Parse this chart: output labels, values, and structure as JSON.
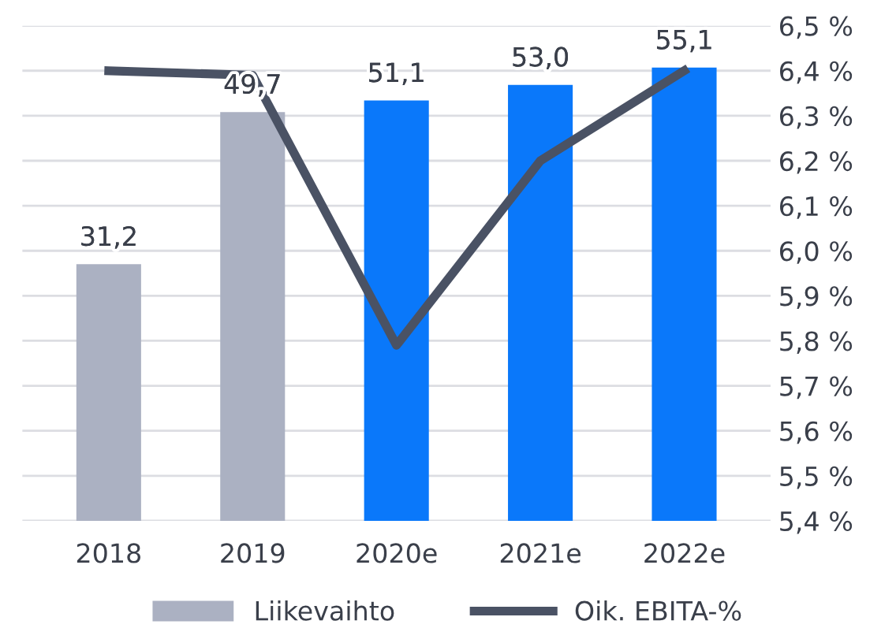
{
  "chart_data": {
    "type": "bar",
    "categories": [
      "2018",
      "2019",
      "2020e",
      "2021e",
      "2022e"
    ],
    "series": [
      {
        "name": "Liikevaihto",
        "colors": [
          "#abb1c2",
          "#abb1c2",
          "#0a78fa",
          "#0a78fa",
          "#0a78fa"
        ],
        "color": "#abb1c2",
        "values": [
          31.2,
          49.7,
          51.1,
          53.0,
          55.1
        ],
        "value_labels": [
          "31,2",
          "49,7",
          "51,1",
          "53,0",
          "55,1"
        ]
      },
      {
        "name": "Oik. EBITA-%",
        "type": "line",
        "axis": "y2",
        "color": "#4a5264",
        "values": [
          6.4,
          6.39,
          5.79,
          6.2,
          6.4
        ]
      }
    ],
    "ylim": [
      0,
      60.2
    ],
    "y2lim": [
      5.4,
      6.5
    ],
    "y2ticks": [
      {
        "value": 5.4,
        "label": "5,4 %"
      },
      {
        "value": 5.5,
        "label": "5,5 %"
      },
      {
        "value": 5.6,
        "label": "5,6 %"
      },
      {
        "value": 5.7,
        "label": "5,7 %"
      },
      {
        "value": 5.8,
        "label": "5,8 %"
      },
      {
        "value": 5.9,
        "label": "5,9 %"
      },
      {
        "value": 6.0,
        "label": "6,0 %"
      },
      {
        "value": 6.1,
        "label": "6,1 %"
      },
      {
        "value": 6.2,
        "label": "6,2 %"
      },
      {
        "value": 6.3,
        "label": "6,3 %"
      },
      {
        "value": 6.4,
        "label": "6,4 %"
      },
      {
        "value": 6.5,
        "label": "6,5 %"
      }
    ],
    "grid": "y",
    "legend": "bottom",
    "marker": "none",
    "line_style": "solid"
  }
}
